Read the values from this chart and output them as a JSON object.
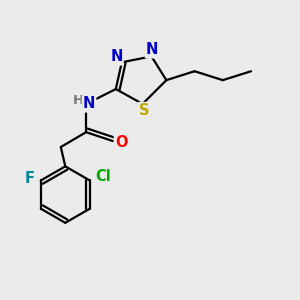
{
  "bg_color": "#ebebeb",
  "bond_color": "#000000",
  "atom_colors": {
    "N": "#0000cc",
    "S": "#bbaa00",
    "O": "#ff0000",
    "F": "#008899",
    "Cl": "#00aa00",
    "H": "#777777",
    "C": "#000000"
  },
  "lw": 1.6,
  "font_size": 10.5
}
